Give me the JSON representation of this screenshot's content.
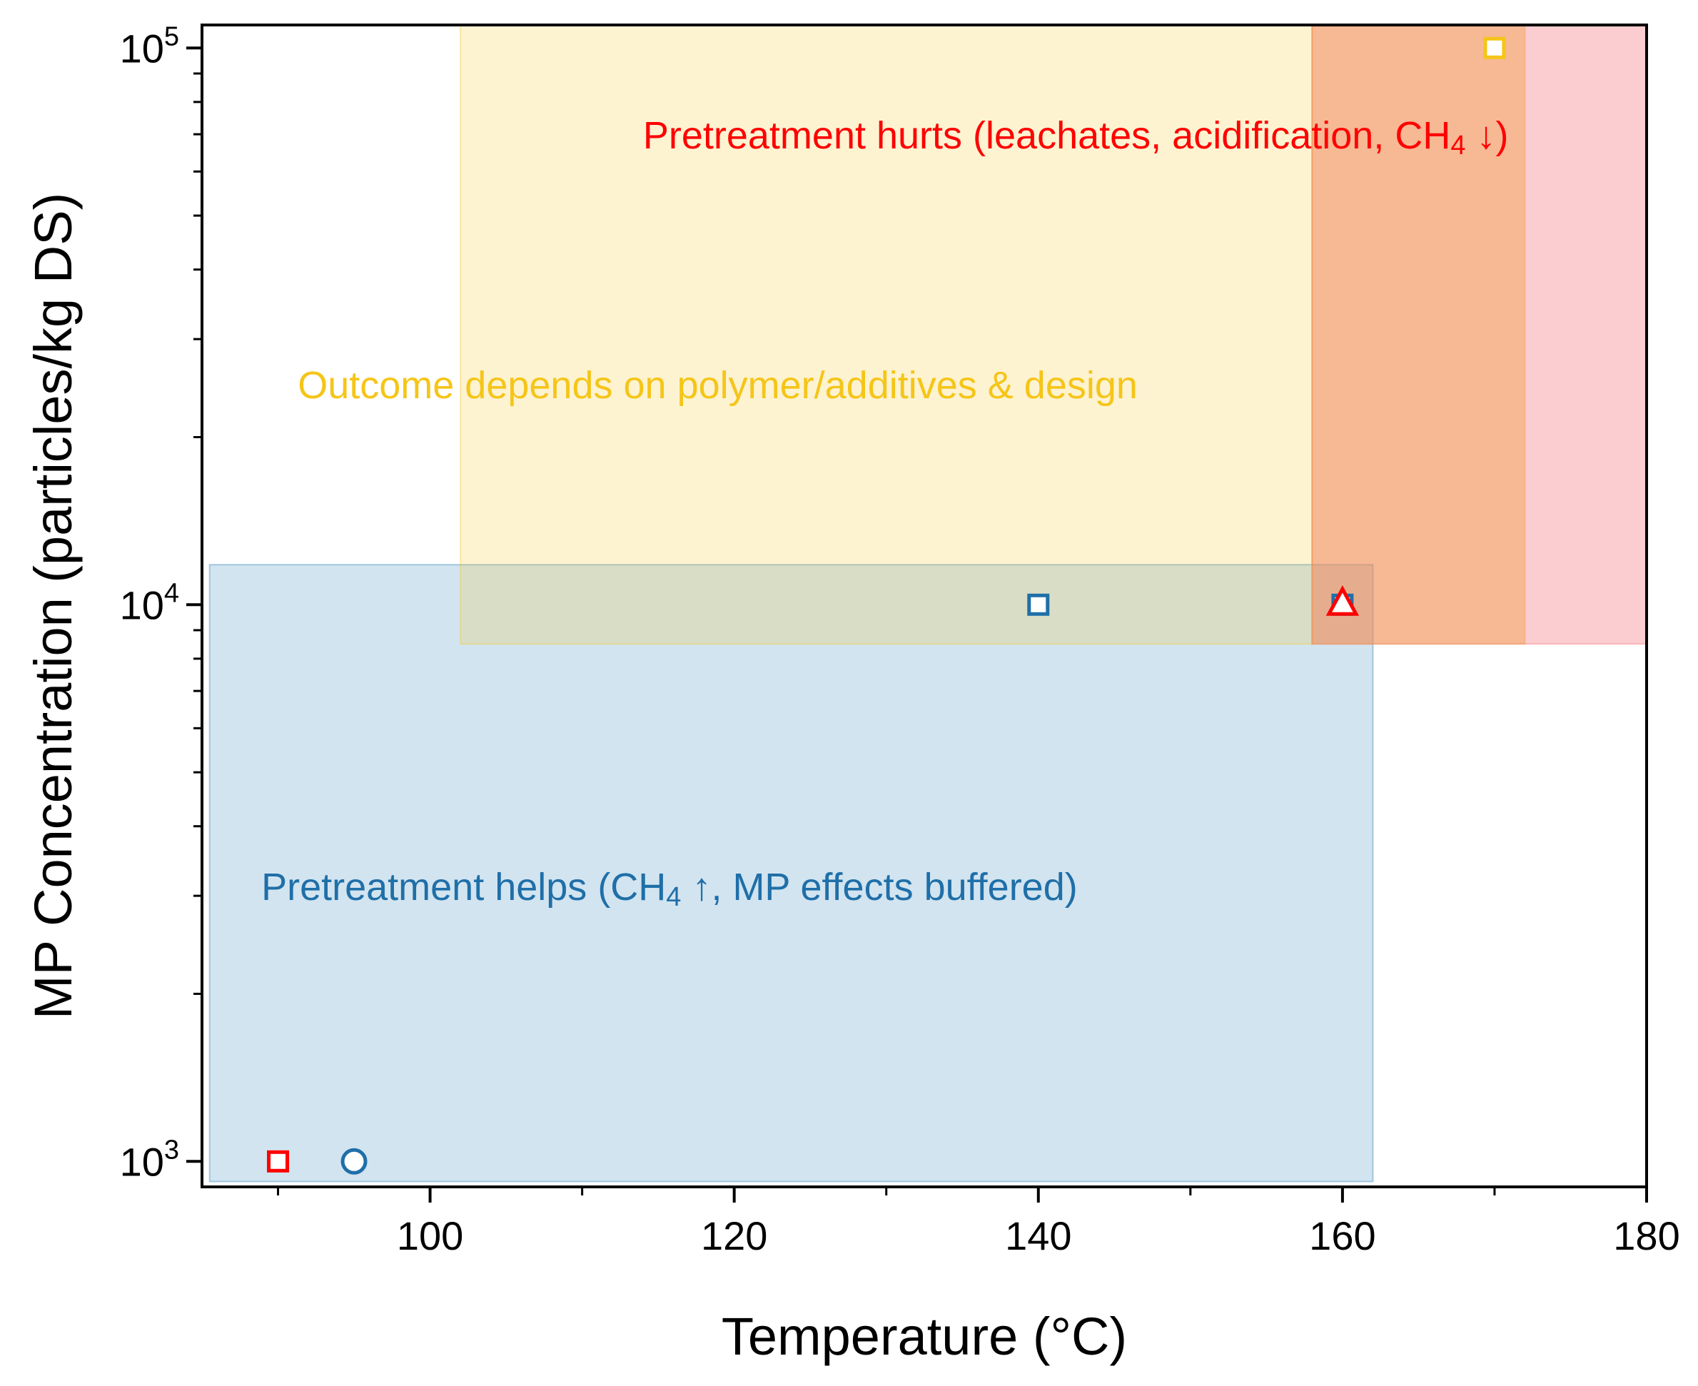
{
  "chart_data": {
    "type": "scatter",
    "title": "",
    "xlabel": "Temperature (°C)",
    "ylabel": "MP Concentration (particles/kg DS)",
    "xlim": [
      85,
      180
    ],
    "ylim": [
      900,
      110000
    ],
    "yscale": "log",
    "x_ticks": [
      100,
      120,
      140,
      160,
      180
    ],
    "x_minor_ticks": [
      90,
      110,
      130,
      150,
      170
    ],
    "y_major_ticks": [
      {
        "value": 1000,
        "base": "10",
        "exp": "3"
      },
      {
        "value": 10000,
        "base": "10",
        "exp": "4"
      },
      {
        "value": 100000,
        "base": "10",
        "exp": "5"
      }
    ],
    "y_minor_ticks": [
      2000,
      3000,
      4000,
      5000,
      6000,
      7000,
      8000,
      9000,
      20000,
      30000,
      40000,
      50000,
      60000,
      70000,
      80000,
      90000
    ],
    "regions": [
      {
        "name": "helps",
        "x0": 85.5,
        "x1": 162,
        "y0": 920,
        "y1": 11800,
        "color": "#1f77b4",
        "opacity": 0.2
      },
      {
        "name": "depends",
        "x0": 102,
        "x1": 158,
        "y0": 8500,
        "y1": 110000,
        "color": "#f5c518",
        "opacity": 0.2
      },
      {
        "name": "hurts",
        "x0": 158,
        "x1": 180,
        "y0": 8500,
        "y1": 110000,
        "color": "#f4646e",
        "opacity": 0.32
      },
      {
        "name": "overlap",
        "x0": 158,
        "x1": 172,
        "y0": 8500,
        "y1": 110000,
        "color": "#f09a40",
        "opacity": 0.42
      }
    ],
    "annotations": [
      {
        "name": "hurts-label",
        "text": "Pretreatment hurts (leachates, acidification, CH",
        "sub": "4",
        "tail": " ↓)",
        "x": 114,
        "y": 66000,
        "color": "#ff0000"
      },
      {
        "name": "depends-label",
        "text": "Outcome depends on polymer/additives & design",
        "sub": "",
        "tail": "",
        "x": 91.3,
        "y": 23500,
        "color": "#f5c518"
      },
      {
        "name": "helps-label",
        "text": "Pretreatment helps (CH",
        "sub": "4",
        "tail": " ↑, MP effects buffered)",
        "x": 88.9,
        "y": 2950,
        "color": "#1f6fa8"
      }
    ],
    "points": [
      {
        "x": 90,
        "y": 1000,
        "marker": "square",
        "color": "#ff0000"
      },
      {
        "x": 95,
        "y": 1000,
        "marker": "circle",
        "color": "#1f6fa8"
      },
      {
        "x": 140,
        "y": 10000,
        "marker": "square",
        "color": "#1f6fa8"
      },
      {
        "x": 160,
        "y": 10000,
        "marker": "square",
        "color": "#1f6fa8"
      },
      {
        "x": 160,
        "y": 10000,
        "marker": "triangle",
        "color": "#ff0000"
      },
      {
        "x": 170,
        "y": 100000,
        "marker": "square",
        "color": "#f5c518"
      }
    ]
  }
}
